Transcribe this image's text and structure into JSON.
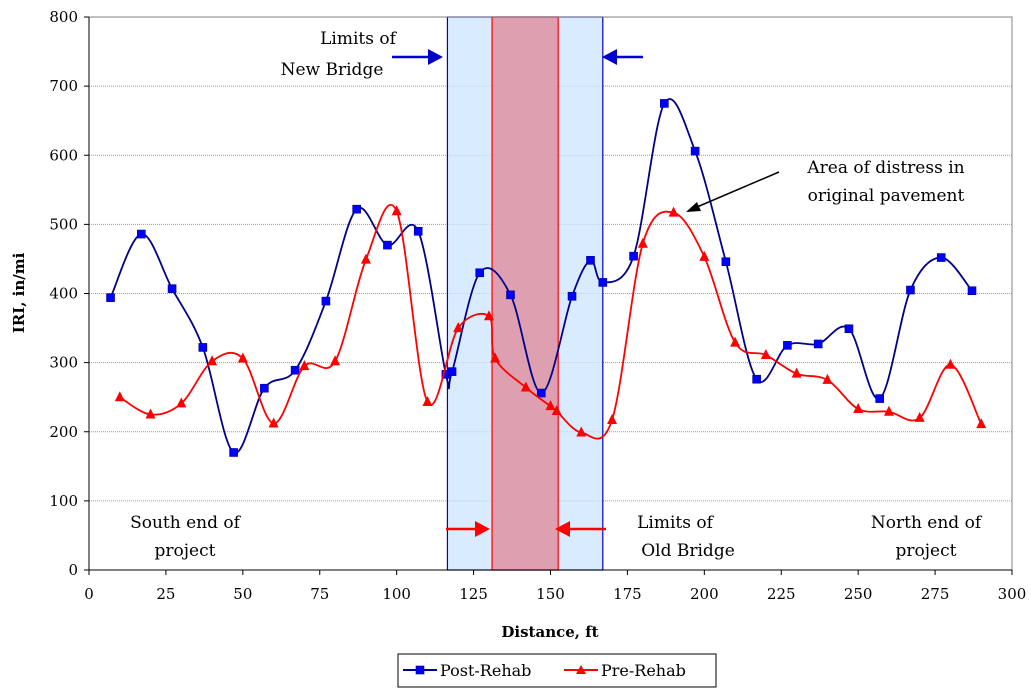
{
  "chart_data": {
    "type": "line",
    "title": "",
    "xlabel": "Distance, ft",
    "ylabel": "IRI, in/mi",
    "xlim": [
      0,
      300
    ],
    "ylim": [
      0,
      800
    ],
    "xticks": [
      0,
      25,
      50,
      75,
      100,
      125,
      150,
      175,
      200,
      225,
      250,
      275,
      300
    ],
    "yticks": [
      0,
      100,
      200,
      300,
      400,
      500,
      600,
      700,
      800
    ],
    "grid": "horizontal",
    "legend_position": "bottom-center",
    "series": [
      {
        "name": "Post-Rehab",
        "color": "#00008B",
        "marker_color": "#0000FF",
        "marker": "square",
        "x": [
          7,
          17,
          27,
          37,
          47,
          57,
          67,
          77,
          87,
          97,
          107,
          116,
          118,
          127,
          137,
          147,
          157,
          163,
          167,
          177,
          187,
          197,
          207,
          217,
          227,
          237,
          247,
          257,
          267,
          277,
          287
        ],
        "y": [
          394,
          486,
          407,
          322,
          170,
          263,
          289,
          389,
          522,
          470,
          490,
          283,
          287,
          430,
          398,
          256,
          396,
          448,
          416,
          454,
          675,
          606,
          446,
          276,
          325,
          327,
          349,
          248,
          405,
          452,
          404
        ]
      },
      {
        "name": "Pre-Rehab",
        "color": "#FF0000",
        "marker_color": "#FF0000",
        "marker": "triangle",
        "x": [
          10,
          20,
          30,
          40,
          50,
          60,
          70,
          80,
          90,
          100,
          110,
          120,
          130,
          132,
          142,
          150,
          152,
          160,
          170,
          180,
          190,
          200,
          210,
          220,
          230,
          240,
          250,
          260,
          270,
          280,
          290
        ],
        "y": [
          250,
          225,
          241,
          302,
          306,
          212,
          295,
          302,
          449,
          519,
          243,
          350,
          367,
          306,
          264,
          237,
          230,
          199,
          217,
          472,
          517,
          453,
          329,
          311,
          284,
          275,
          233,
          229,
          220,
          297,
          211
        ]
      }
    ],
    "regions": [
      {
        "name": "new-bridge",
        "x_range": [
          116.5,
          167
        ],
        "fill": "#CCE5FF",
        "fill_opacity": 0.75,
        "stroke": "#0000CC"
      },
      {
        "name": "old-bridge",
        "x_range": [
          131,
          152.5
        ],
        "fill": "#DE8C9C",
        "fill_opacity": 0.8,
        "stroke": "#FF0000"
      }
    ],
    "annotations": {
      "new_bridge": [
        "Limits of",
        "New Bridge"
      ],
      "old_bridge": [
        "Limits of",
        "Old Bridge"
      ],
      "distress": [
        "Area of distress in",
        "original pavement"
      ],
      "south": [
        "South end of",
        "project"
      ],
      "north": [
        "North end of",
        "project"
      ]
    }
  }
}
